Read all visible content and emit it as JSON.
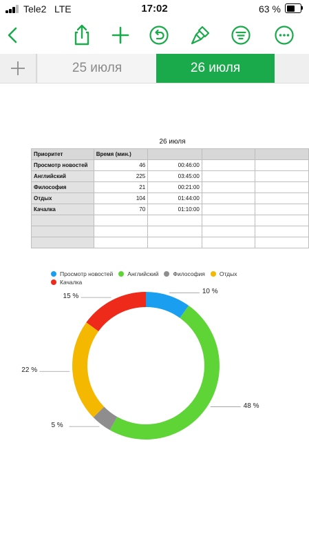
{
  "status_bar": {
    "carrier": "Tele2",
    "network": "LTE",
    "time": "17:02",
    "battery": "63 %",
    "battery_level": 0.63
  },
  "toolbar": {
    "icons": [
      "back-icon",
      "share-icon",
      "add-icon",
      "undo-icon",
      "brush-icon",
      "filter-icon",
      "more-icon"
    ],
    "accent": "#1aaa4c"
  },
  "tabs": [
    {
      "label": "25 июля",
      "active": false
    },
    {
      "label": "26 июля",
      "active": true
    }
  ],
  "table": {
    "title": "26 июля",
    "headers": [
      "Приоритет",
      "Время (мин.)",
      "",
      "",
      ""
    ],
    "rows": [
      {
        "name": "Просмотр новостей",
        "minutes": "46",
        "time": "00:46:00"
      },
      {
        "name": "Английский",
        "minutes": "225",
        "time": "03:45:00"
      },
      {
        "name": "Философия",
        "minutes": "21",
        "time": "00:21:00"
      },
      {
        "name": "Отдых",
        "minutes": "104",
        "time": "01:44:00"
      },
      {
        "name": "Качалка",
        "minutes": "70",
        "time": "01:10:00"
      },
      {
        "name": "",
        "minutes": "",
        "time": ""
      },
      {
        "name": "",
        "minutes": "",
        "time": ""
      },
      {
        "name": "",
        "minutes": "",
        "time": ""
      }
    ]
  },
  "chart_data": {
    "type": "pie",
    "donut": true,
    "categories": [
      "Просмотр новостей",
      "Английский",
      "Философия",
      "Отдых",
      "Качалка"
    ],
    "values": [
      46,
      225,
      21,
      104,
      70
    ],
    "colors": [
      "#1a9ff0",
      "#5fd437",
      "#8e8e8e",
      "#f5b800",
      "#ee2a1b"
    ],
    "percent_labels": [
      "10 %",
      "48 %",
      "5 %",
      "22 %",
      "15 %"
    ],
    "legend_position": "top"
  }
}
